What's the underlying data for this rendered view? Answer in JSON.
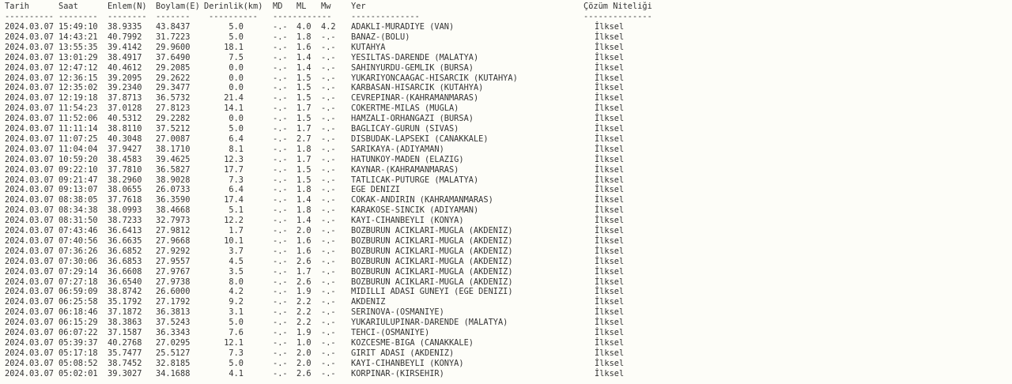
{
  "header": {
    "tarih": "Tarih",
    "saat": "Saat",
    "enlem": "Enlem(N)",
    "boylam": "Boylam(E)",
    "derinlik": "Derinlik(km)",
    "md": "MD",
    "ml": "ML",
    "mw": "Mw",
    "yer": "Yer",
    "cozum": "Çözüm Niteliği"
  },
  "separators": {
    "tarih": "----------",
    "saat": "--------",
    "enlem": "--------",
    "boylam": "-------",
    "derinlik": "----------",
    "mag": "------------",
    "yer": "--------------",
    "cozum": "--------------"
  },
  "rows": [
    [
      "2024.03.07",
      "15:49:10",
      "38.9335",
      "43.8437",
      "5.0",
      "-.-",
      "4.0",
      "4.2",
      "ADAKLI-MURADIYE (VAN)",
      "İlksel"
    ],
    [
      "2024.03.07",
      "14:43:21",
      "40.7992",
      "31.7223",
      "5.0",
      "-.-",
      "1.8",
      "-.-",
      "BANAZ-(BOLU)",
      "İlksel"
    ],
    [
      "2024.03.07",
      "13:55:35",
      "39.4142",
      "29.9600",
      "18.1",
      "-.-",
      "1.6",
      "-.-",
      "KUTAHYA",
      "İlksel"
    ],
    [
      "2024.03.07",
      "13:01:29",
      "38.4917",
      "37.6490",
      "7.5",
      "-.-",
      "1.4",
      "-.-",
      "YESILTAS-DARENDE (MALATYA)",
      "İlksel"
    ],
    [
      "2024.03.07",
      "12:47:12",
      "40.4612",
      "29.2085",
      "0.0",
      "-.-",
      "1.4",
      "-.-",
      "SAHINYURDU-GEMLIK (BURSA)",
      "İlksel"
    ],
    [
      "2024.03.07",
      "12:36:15",
      "39.2095",
      "29.2622",
      "0.0",
      "-.-",
      "1.5",
      "-.-",
      "YUKARIYONCAAGAC-HISARCIK (KUTAHYA)",
      "İlksel"
    ],
    [
      "2024.03.07",
      "12:35:02",
      "39.2340",
      "29.3477",
      "0.0",
      "-.-",
      "1.5",
      "-.-",
      "KARBASAN-HISARCIK (KUTAHYA)",
      "İlksel"
    ],
    [
      "2024.03.07",
      "12:19:18",
      "37.8713",
      "36.5732",
      "21.4",
      "-.-",
      "1.5",
      "-.-",
      "CEVREPINAR-(KAHRAMANMARAS)",
      "İlksel"
    ],
    [
      "2024.03.07",
      "11:54:23",
      "37.0128",
      "27.8123",
      "14.1",
      "-.-",
      "1.7",
      "-.-",
      "COKERTME-MILAS (MUGLA)",
      "İlksel"
    ],
    [
      "2024.03.07",
      "11:52:06",
      "40.5312",
      "29.2282",
      "0.0",
      "-.-",
      "1.5",
      "-.-",
      "HAMZALI-ORHANGAZI (BURSA)",
      "İlksel"
    ],
    [
      "2024.03.07",
      "11:11:14",
      "38.8110",
      "37.5212",
      "5.0",
      "-.-",
      "1.7",
      "-.-",
      "BAGLICAY-GURUN (SIVAS)",
      "İlksel"
    ],
    [
      "2024.03.07",
      "11:07:25",
      "40.3048",
      "27.0087",
      "6.4",
      "-.-",
      "2.7",
      "-.-",
      "DISBUDAK-LAPSEKI (CANAKKALE)",
      "İlksel"
    ],
    [
      "2024.03.07",
      "11:04:04",
      "37.9427",
      "38.1710",
      "8.1",
      "-.-",
      "1.8",
      "-.-",
      "SARIKAYA-(ADIYAMAN)",
      "İlksel"
    ],
    [
      "2024.03.07",
      "10:59:20",
      "38.4583",
      "39.4625",
      "12.3",
      "-.-",
      "1.7",
      "-.-",
      "HATUNKOY-MADEN (ELAZIG)",
      "İlksel"
    ],
    [
      "2024.03.07",
      "09:22:10",
      "37.7810",
      "36.5827",
      "17.7",
      "-.-",
      "1.5",
      "-.-",
      "KAYNAR-(KAHRAMANMARAS)",
      "İlksel"
    ],
    [
      "2024.03.07",
      "09:21:47",
      "38.2960",
      "38.9028",
      "7.3",
      "-.-",
      "1.5",
      "-.-",
      "TATLICAK-PUTURGE (MALATYA)",
      "İlksel"
    ],
    [
      "2024.03.07",
      "09:13:07",
      "38.0655",
      "26.0733",
      "6.4",
      "-.-",
      "1.8",
      "-.-",
      "EGE DENIZI",
      "İlksel"
    ],
    [
      "2024.03.07",
      "08:38:05",
      "37.7618",
      "36.3590",
      "17.4",
      "-.-",
      "1.4",
      "-.-",
      "COKAK-ANDIRIN (KAHRAMANMARAS)",
      "İlksel"
    ],
    [
      "2024.03.07",
      "08:34:38",
      "38.0993",
      "38.4668",
      "5.1",
      "-.-",
      "1.8",
      "-.-",
      "KARAKOSE-SINCIK (ADIYAMAN)",
      "İlksel"
    ],
    [
      "2024.03.07",
      "08:31:50",
      "38.7233",
      "32.7973",
      "12.2",
      "-.-",
      "1.4",
      "-.-",
      "KAYI-CIHANBEYLI (KONYA)",
      "İlksel"
    ],
    [
      "2024.03.07",
      "07:43:46",
      "36.6413",
      "27.9812",
      "1.7",
      "-.-",
      "2.0",
      "-.-",
      "BOZBURUN ACIKLARI-MUGLA (AKDENIZ)",
      "İlksel"
    ],
    [
      "2024.03.07",
      "07:40:56",
      "36.6635",
      "27.9668",
      "10.1",
      "-.-",
      "1.6",
      "-.-",
      "BOZBURUN ACIKLARI-MUGLA (AKDENIZ)",
      "İlksel"
    ],
    [
      "2024.03.07",
      "07:36:26",
      "36.6852",
      "27.9292",
      "3.7",
      "-.-",
      "1.6",
      "-.-",
      "BOZBURUN ACIKLARI-MUGLA (AKDENIZ)",
      "İlksel"
    ],
    [
      "2024.03.07",
      "07:30:06",
      "36.6853",
      "27.9557",
      "4.5",
      "-.-",
      "2.6",
      "-.-",
      "BOZBURUN ACIKLARI-MUGLA (AKDENIZ)",
      "İlksel"
    ],
    [
      "2024.03.07",
      "07:29:14",
      "36.6608",
      "27.9767",
      "3.5",
      "-.-",
      "1.7",
      "-.-",
      "BOZBURUN ACIKLARI-MUGLA (AKDENIZ)",
      "İlksel"
    ],
    [
      "2024.03.07",
      "07:27:18",
      "36.6540",
      "27.9738",
      "8.0",
      "-.-",
      "2.6",
      "-.-",
      "BOZBURUN ACIKLARI-MUGLA (AKDENIZ)",
      "İlksel"
    ],
    [
      "2024.03.07",
      "06:59:09",
      "38.8742",
      "26.6000",
      "4.2",
      "-.-",
      "1.9",
      "-.-",
      "MIDILLI ADASI GUNEYI (EGE DENIZI)",
      "İlksel"
    ],
    [
      "2024.03.07",
      "06:25:58",
      "35.1792",
      "27.1792",
      "9.2",
      "-.-",
      "2.2",
      "-.-",
      "AKDENIZ",
      "İlksel"
    ],
    [
      "2024.03.07",
      "06:18:46",
      "37.1872",
      "36.3813",
      "3.1",
      "-.-",
      "2.2",
      "-.-",
      "SERINOVA-(OSMANIYE)",
      "İlksel"
    ],
    [
      "2024.03.07",
      "06:15:29",
      "38.3863",
      "37.5243",
      "5.0",
      "-.-",
      "2.2",
      "-.-",
      "YUKARIULUPINAR-DARENDE (MALATYA)",
      "İlksel"
    ],
    [
      "2024.03.07",
      "06:07:22",
      "37.1587",
      "36.3343",
      "7.6",
      "-.-",
      "1.9",
      "-.-",
      "TEHCI-(OSMANIYE)",
      "İlksel"
    ],
    [
      "2024.03.07",
      "05:39:37",
      "40.2768",
      "27.0295",
      "12.1",
      "-.-",
      "1.0",
      "-.-",
      "KOZCESME-BIGA (CANAKKALE)",
      "İlksel"
    ],
    [
      "2024.03.07",
      "05:17:18",
      "35.7477",
      "25.5127",
      "7.3",
      "-.-",
      "2.0",
      "-.-",
      "GIRIT ADASI (AKDENIZ)",
      "İlksel"
    ],
    [
      "2024.03.07",
      "05:08:52",
      "38.7452",
      "32.8185",
      "5.0",
      "-.-",
      "2.0",
      "-.-",
      "KAYI-CIHANBEYLI (KONYA)",
      "İlksel"
    ],
    [
      "2024.03.07",
      "05:02:01",
      "39.3027",
      "34.1688",
      "4.1",
      "-.-",
      "2.6",
      "-.-",
      "KORPINAR-(KIRSEHIR)",
      "İlksel"
    ]
  ]
}
